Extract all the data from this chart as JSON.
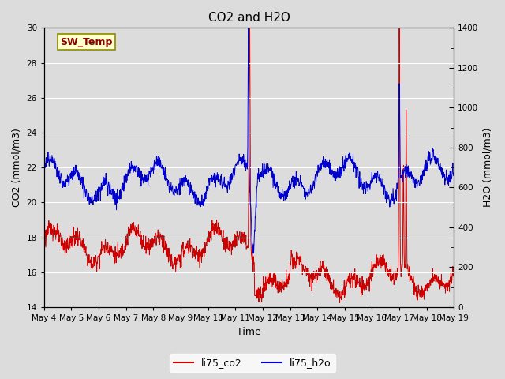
{
  "title": "CO2 and H2O",
  "xlabel": "Time",
  "ylabel_left": "CO2 (mmol/m3)",
  "ylabel_right": "H2O (mmol/m3)",
  "ylim_left": [
    14,
    30
  ],
  "ylim_right": [
    0,
    1400
  ],
  "yticks_left": [
    14,
    16,
    18,
    20,
    22,
    24,
    26,
    28,
    30
  ],
  "yticks_right": [
    0,
    200,
    400,
    600,
    800,
    1000,
    1200,
    1400
  ],
  "xtick_labels": [
    "May 4",
    "May 5",
    "May 6",
    "May 7",
    "May 8",
    "May 9",
    "May 10",
    "May 11",
    "May 12",
    "May 13",
    "May 14",
    "May 15",
    "May 16",
    "May 17",
    "May 18",
    "May 19"
  ],
  "color_co2": "#cc0000",
  "color_h2o": "#0000cc",
  "legend_label_co2": "li75_co2",
  "legend_label_h2o": "li75_h2o",
  "annotation_label": "SW_Temp",
  "annotation_color_text": "#8b0000",
  "annotation_bg_color": "#ffffcc",
  "annotation_border_color": "#8b8b00",
  "bg_color": "#dcdcdc",
  "grid_color": "#ffffff",
  "linewidth_data": 0.7,
  "fontsize_ticks": 7.5,
  "fontsize_axis_label": 9,
  "fontsize_title": 11,
  "fontsize_legend": 9,
  "fontsize_annotation": 9
}
